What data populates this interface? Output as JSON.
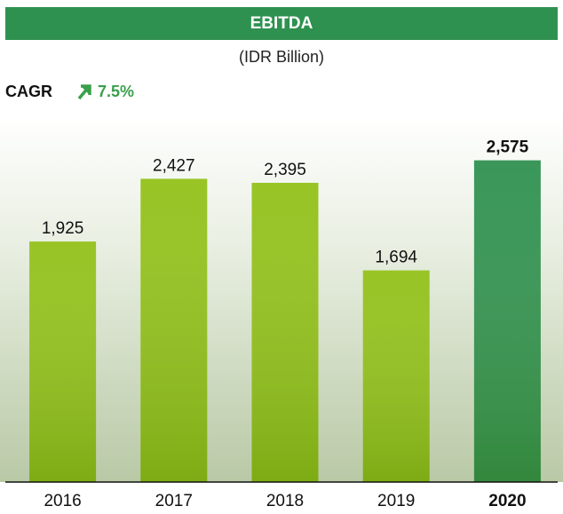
{
  "chart_data": {
    "type": "bar",
    "title": "EBITDA",
    "subtitle": "(IDR Billion)",
    "cagr_label": "CAGR",
    "cagr_value": "7.5%",
    "categories": [
      "2016",
      "2017",
      "2018",
      "2019",
      "2020"
    ],
    "values": [
      1925,
      2427,
      2395,
      1694,
      2575
    ],
    "value_labels": [
      "1,925",
      "2,427",
      "2,395",
      "1,694",
      "2,575"
    ],
    "colors": [
      "#93c11a",
      "#93c11a",
      "#93c11a",
      "#93c11a",
      "#2f9150"
    ],
    "bold": [
      false,
      false,
      false,
      false,
      true
    ],
    "ylim": [
      0,
      2700
    ],
    "grid": false
  }
}
